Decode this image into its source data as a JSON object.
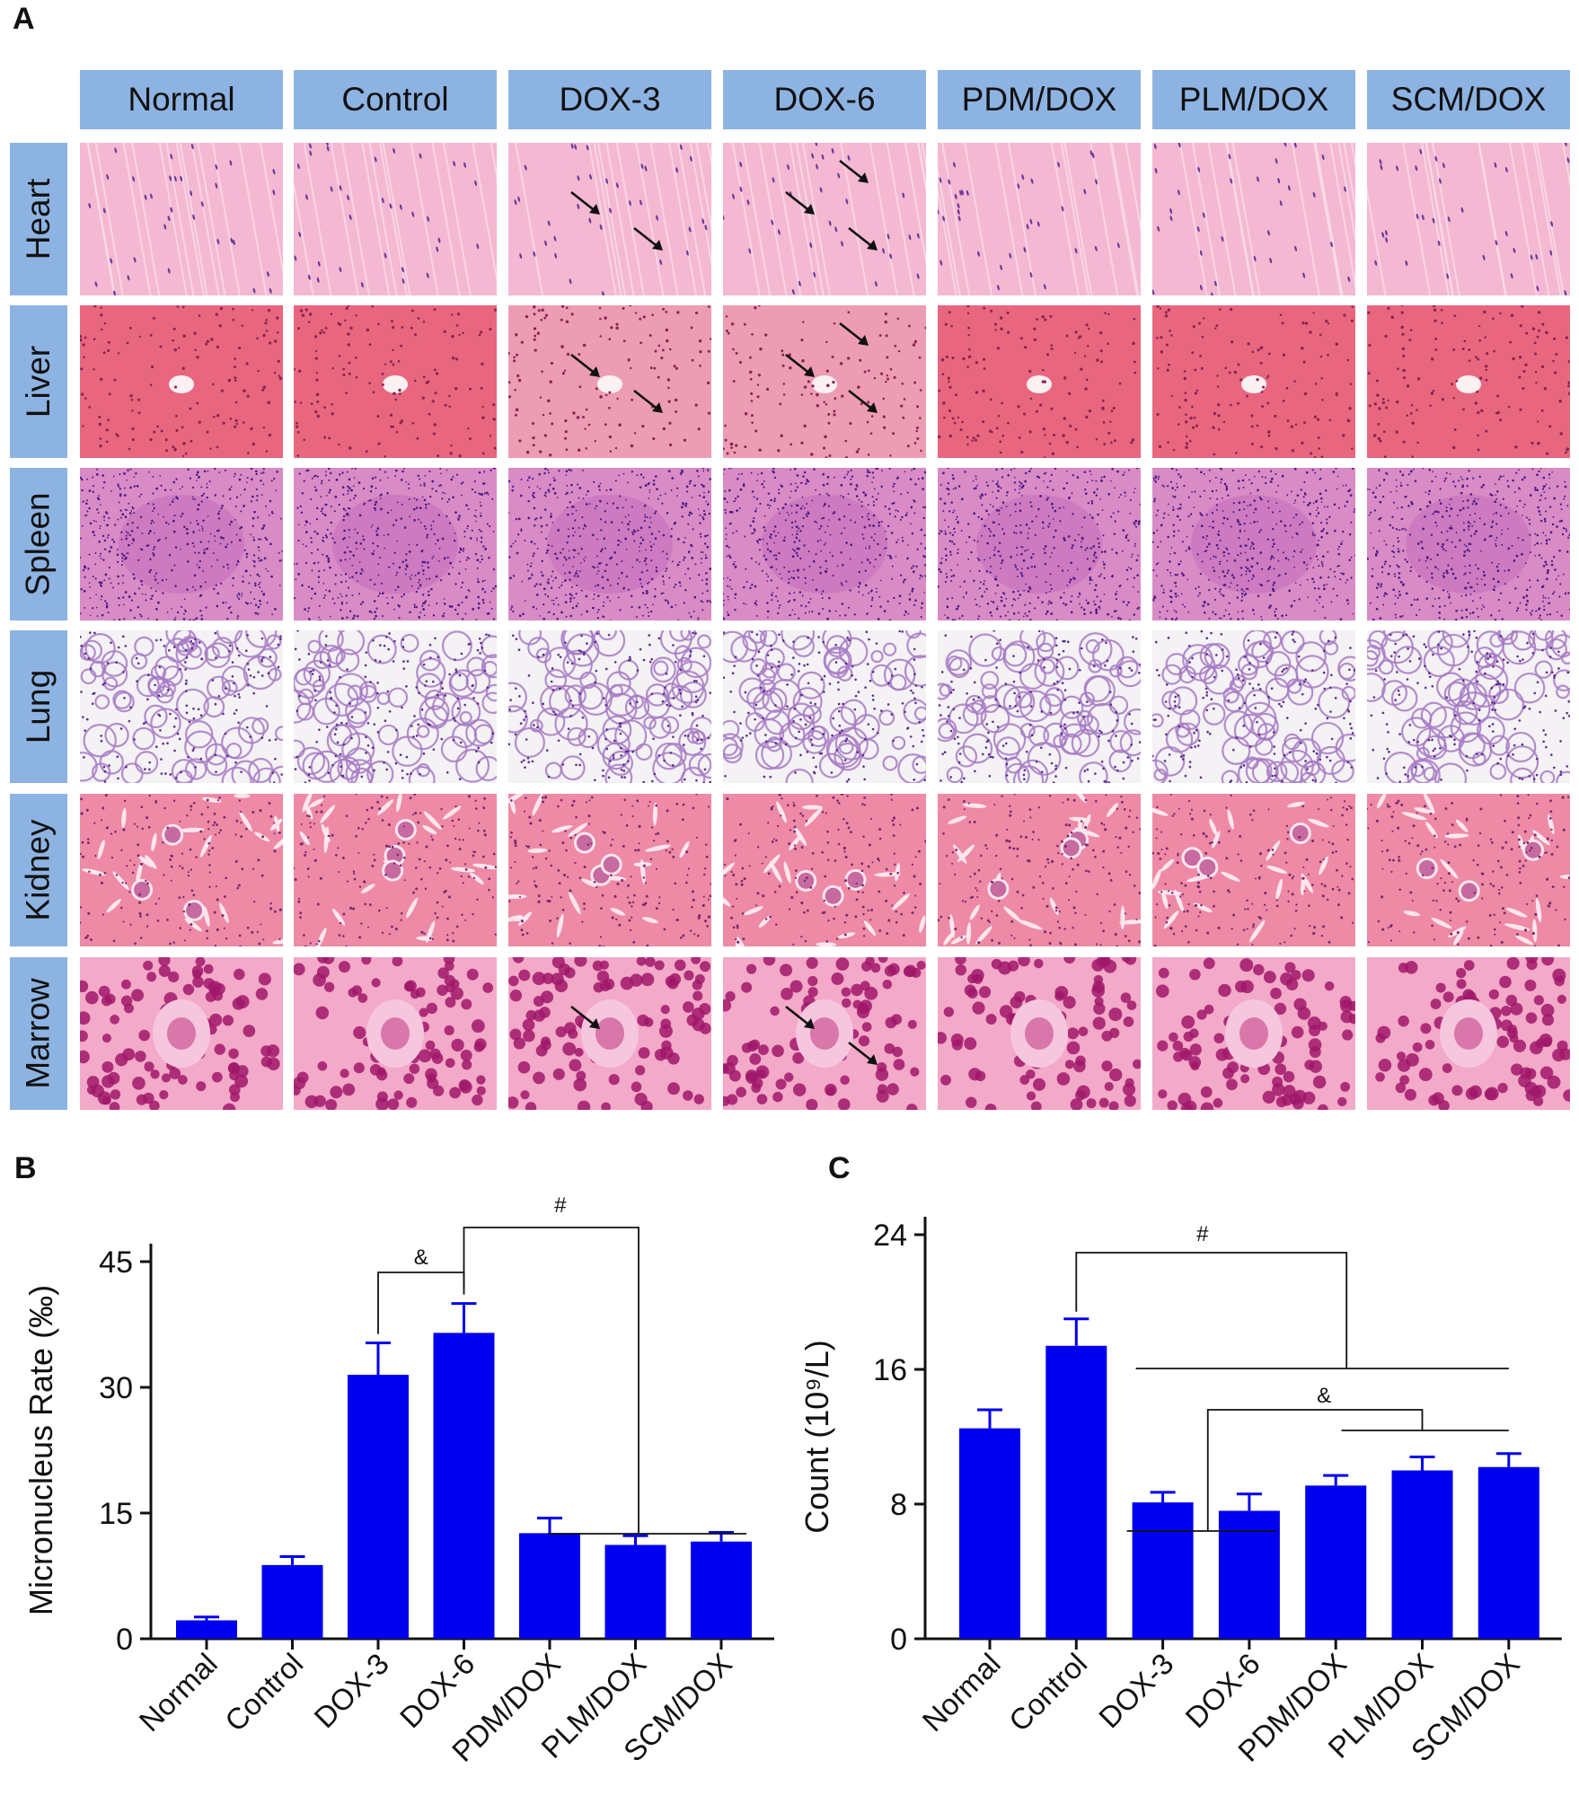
{
  "panels": {
    "A": "A",
    "B": "B",
    "C": "C"
  },
  "histology": {
    "columns": [
      "Normal",
      "Control",
      "DOX-3",
      "DOX-6",
      "PDM/DOX",
      "PLM/DOX",
      "SCM/DOX"
    ],
    "rows": [
      "Heart",
      "Liver",
      "Spleen",
      "Lung",
      "Kidney",
      "Marrow"
    ],
    "arrows": [
      {
        "row": "Heart",
        "col": "DOX-3",
        "count": 2
      },
      {
        "row": "Heart",
        "col": "DOX-6",
        "count": 3
      },
      {
        "row": "Liver",
        "col": "DOX-3",
        "count": 2
      },
      {
        "row": "Liver",
        "col": "DOX-6",
        "count": 3
      },
      {
        "row": "Marrow",
        "col": "DOX-3",
        "count": 1
      },
      {
        "row": "Marrow",
        "col": "DOX-6",
        "count": 2
      }
    ],
    "colors": {
      "header_bg": "#8db3e2",
      "he_pink": "#f2a7c6",
      "he_liver": "#e35d7f",
      "nuclei": "#5a2a8a"
    }
  },
  "chart_data": [
    {
      "type": "bar",
      "panel": "B",
      "categories": [
        "Normal",
        "Control",
        "DOX-3",
        "DOX-6",
        "PDM/DOX",
        "PLM/DOX",
        "SCM/DOX"
      ],
      "values": [
        2.2,
        8.8,
        31.5,
        36.5,
        12.6,
        11.2,
        11.6
      ],
      "errors": [
        0.4,
        1.0,
        3.8,
        3.5,
        1.8,
        1.1,
        1.1
      ],
      "ylabel": "Micronucleus Rate (‰)",
      "ylim": [
        0,
        45
      ],
      "yticks": [
        "0",
        "15",
        "30",
        "45"
      ],
      "bar_color": "#0000ee",
      "annotations": [
        {
          "symbol": "&",
          "from": "DOX-3",
          "to": "DOX-6"
        },
        {
          "symbol": "#",
          "from": "DOX-6",
          "to": [
            "PDM/DOX",
            "PLM/DOX",
            "SCM/DOX"
          ]
        }
      ]
    },
    {
      "type": "bar",
      "panel": "C",
      "categories": [
        "Normal",
        "Control",
        "DOX-3",
        "DOX-6",
        "PDM/DOX",
        "PLM/DOX",
        "SCM/DOX"
      ],
      "values": [
        12.5,
        17.4,
        8.1,
        7.6,
        9.1,
        10.0,
        10.2
      ],
      "errors": [
        1.1,
        1.6,
        0.6,
        1.0,
        0.6,
        0.8,
        0.8
      ],
      "ylabel": "Count (10⁹/L)",
      "ylim": [
        0,
        24
      ],
      "yticks": [
        "0",
        "8",
        "16",
        "24"
      ],
      "bar_color": "#0000ee",
      "annotations": [
        {
          "symbol": "#",
          "from": "Control",
          "to": [
            "DOX-3",
            "DOX-6",
            "PDM/DOX",
            "PLM/DOX",
            "SCM/DOX"
          ]
        },
        {
          "symbol": "&",
          "from": [
            "DOX-3",
            "DOX-6"
          ],
          "to": [
            "PLM/DOX",
            "SCM/DOX"
          ]
        }
      ]
    }
  ]
}
